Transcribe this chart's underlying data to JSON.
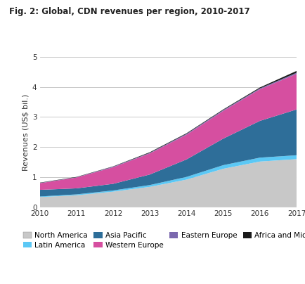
{
  "title": "Fig. 2: Global, CDN revenues per region, 2010-2017",
  "ylabel": "Revenues (US$ bil.)",
  "years": [
    2010,
    2011,
    2012,
    2013,
    2014,
    2015,
    2016,
    2017
  ],
  "series": {
    "North America": [
      0.34,
      0.4,
      0.52,
      0.68,
      0.92,
      1.28,
      1.52,
      1.6
    ],
    "Latin America": [
      0.02,
      0.03,
      0.04,
      0.06,
      0.09,
      0.12,
      0.13,
      0.13
    ],
    "Asia Pacific": [
      0.22,
      0.2,
      0.22,
      0.35,
      0.58,
      0.88,
      1.22,
      1.52
    ],
    "Western Europe": [
      0.22,
      0.36,
      0.55,
      0.7,
      0.82,
      0.92,
      1.05,
      1.18
    ],
    "Eastern Europe": [
      0.01,
      0.01,
      0.02,
      0.02,
      0.03,
      0.03,
      0.03,
      0.04
    ],
    "Africa and Middle East": [
      0.01,
      0.01,
      0.01,
      0.02,
      0.02,
      0.02,
      0.03,
      0.06
    ]
  },
  "colors": {
    "North America": "#c8c8c8",
    "Latin America": "#5bc8f5",
    "Asia Pacific": "#2e6e99",
    "Western Europe": "#d64fa0",
    "Eastern Europe": "#7b68ae",
    "Africa and Middle East": "#1a1a1a"
  },
  "ylim": [
    0,
    5
  ],
  "yticks": [
    0,
    1,
    2,
    3,
    4,
    5
  ],
  "background_color": "#ffffff",
  "grid_color": "#c0c0c0",
  "title_fontsize": 8.5,
  "label_fontsize": 8,
  "tick_fontsize": 7.5,
  "legend_fontsize": 7.5
}
